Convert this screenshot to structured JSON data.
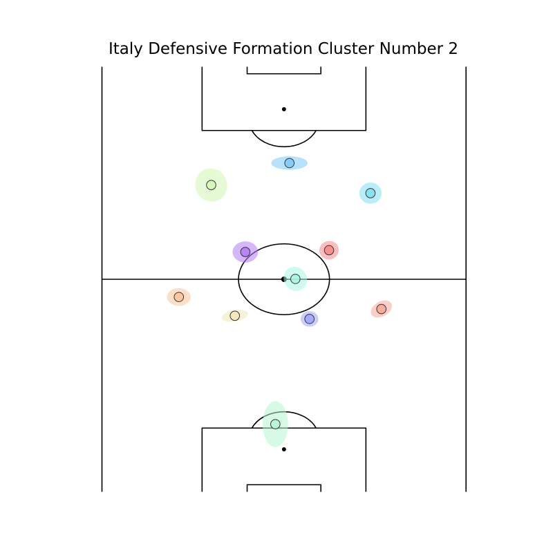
{
  "chart_data": {
    "type": "scatter",
    "title": "Italy Defensive Formation Cluster Number 2",
    "xlabel": "",
    "ylabel": "",
    "pitch": {
      "length": 120,
      "width": 80,
      "orientation": "vertical",
      "axis": "off",
      "grid": false,
      "line_color": "#000000"
    },
    "x_range": [
      0,
      80
    ],
    "y_range": [
      0,
      120
    ],
    "points": [
      {
        "x": 41.2,
        "y": 92.8,
        "ellipse_w": 8.0,
        "ellipse_h": 3.8,
        "ellipse_angle": 0,
        "color": "#7ec8f7"
      },
      {
        "x": 24.0,
        "y": 86.6,
        "ellipse_w": 7.0,
        "ellipse_h": 9.5,
        "ellipse_angle": -20,
        "color": "#d4f5b5"
      },
      {
        "x": 59.0,
        "y": 84.3,
        "ellipse_w": 4.9,
        "ellipse_h": 6.0,
        "ellipse_angle": 0,
        "color": "#7fdff0"
      },
      {
        "x": 31.5,
        "y": 67.7,
        "ellipse_w": 5.6,
        "ellipse_h": 6.0,
        "ellipse_angle": 0,
        "color": "#b27af5"
      },
      {
        "x": 49.9,
        "y": 68.2,
        "ellipse_w": 4.3,
        "ellipse_h": 5.2,
        "ellipse_angle": -15,
        "color": "#f58888"
      },
      {
        "x": 42.5,
        "y": 60.1,
        "ellipse_w": 5.0,
        "ellipse_h": 7.0,
        "ellipse_angle": -35,
        "color": "#a8f5e0"
      },
      {
        "x": 16.9,
        "y": 55.0,
        "ellipse_w": 5.2,
        "ellipse_h": 5.0,
        "ellipse_angle": 0,
        "color": "#f8c49c"
      },
      {
        "x": 29.2,
        "y": 49.7,
        "ellipse_w": 5.8,
        "ellipse_h": 3.2,
        "ellipse_angle": -10,
        "color": "#f3e6b8"
      },
      {
        "x": 61.4,
        "y": 51.6,
        "ellipse_w": 5.0,
        "ellipse_h": 4.2,
        "ellipse_angle": -30,
        "color": "#f6a898"
      },
      {
        "x": 45.6,
        "y": 48.8,
        "ellipse_w": 3.9,
        "ellipse_h": 4.4,
        "ellipse_angle": 0,
        "color": "#a0a4f8"
      },
      {
        "x": 38.1,
        "y": 19.1,
        "ellipse_w": 5.6,
        "ellipse_h": 12.9,
        "ellipse_angle": 0,
        "color": "#b5f5d0"
      }
    ]
  }
}
